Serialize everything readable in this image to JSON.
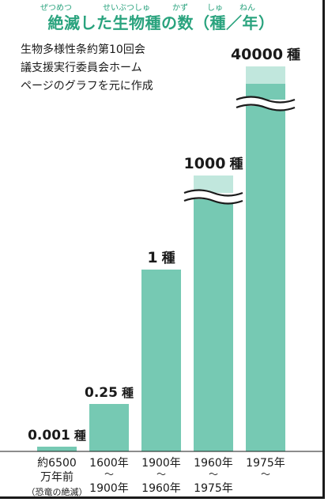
{
  "header": {
    "title": "絶滅した生物種の数（種／年）",
    "ruby": [
      "ぜつめつ",
      "せいぶつしゅ",
      "かず",
      "しゅ",
      "ねん"
    ]
  },
  "source_note": [
    "生物多様性条約第10回会",
    "議支援実行委員会ホーム",
    "ページのグラフを元に作成"
  ],
  "colors": {
    "bar": "#76c9b3",
    "title": "#2aa37e",
    "text": "#1a1a1a",
    "frame": "#1a1a1a"
  },
  "chart_data": {
    "type": "bar",
    "title": "絶滅した生物種の数（種／年）",
    "unit": "種",
    "categories": [
      [
        "約6500",
        "万年前",
        "（恐竜の絶滅）"
      ],
      [
        "1600年",
        "～",
        "1900年"
      ],
      [
        "1900年",
        "～",
        "1960年"
      ],
      [
        "1960年",
        "～",
        "1975年"
      ],
      [
        "1975年",
        "～"
      ]
    ],
    "values": [
      0.001,
      0.25,
      1,
      1000,
      40000
    ],
    "value_labels": [
      "0.001",
      "0.25",
      "1",
      "1000",
      "40000"
    ],
    "axis_break": [
      false,
      false,
      false,
      true,
      true
    ],
    "grid": false,
    "legend": "none"
  }
}
